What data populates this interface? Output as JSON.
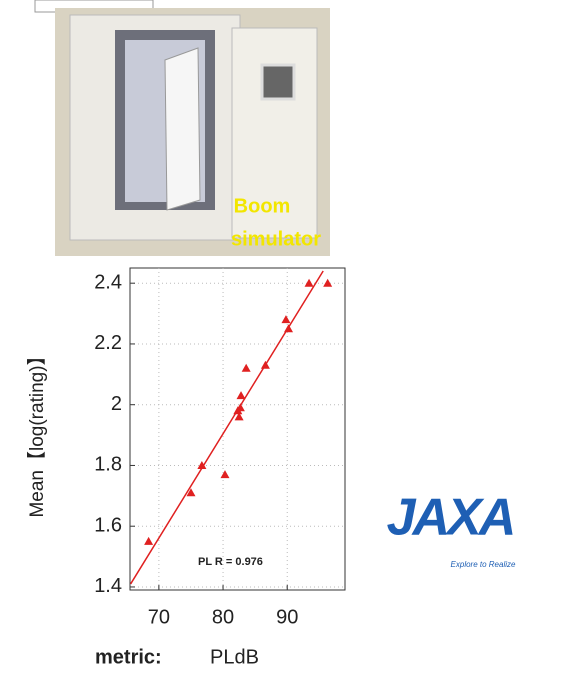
{
  "photo": {
    "label": [
      "Boom",
      "simulator"
    ]
  },
  "logo": {
    "text": "JAXA",
    "tagline": "Explore to Realize"
  },
  "chart_data": {
    "type": "scatter",
    "ylabel": "Mean【log(rating)】",
    "xlabel": [
      "metric:",
      "PLdB"
    ],
    "annotation": "PL  R = 0.976",
    "xlim": [
      65.5,
      99
    ],
    "xticks": [
      70,
      80,
      90
    ],
    "ylim": [
      1.39,
      2.45
    ],
    "yticks": [
      1.4,
      1.6,
      1.8,
      2.0,
      2.2,
      2.4
    ],
    "grid": true,
    "series": [
      {
        "color": "#e02020",
        "marker": "triangle",
        "x": [
          68.4,
          75.0,
          76.7,
          80.3,
          82.3,
          82.5,
          82.7,
          82.8,
          83.6,
          86.6,
          89.8,
          90.2,
          93.4,
          96.3
        ],
        "values": [
          1.55,
          1.71,
          1.8,
          1.77,
          1.98,
          1.96,
          1.99,
          2.03,
          2.12,
          2.13,
          2.28,
          2.25,
          2.4,
          2.4
        ]
      },
      {
        "color": "#e02020",
        "marker": "line",
        "x": [
          65.6,
          95.6
        ],
        "values": [
          1.41,
          2.44
        ]
      }
    ]
  }
}
